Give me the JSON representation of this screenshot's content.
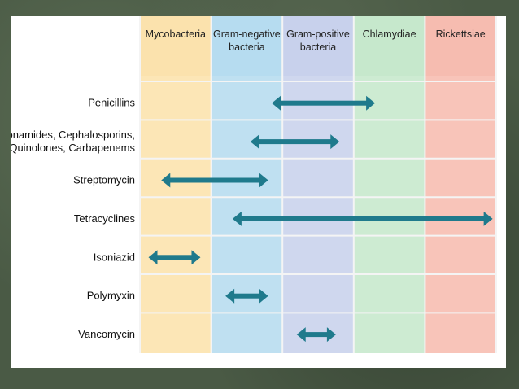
{
  "columns": [
    {
      "lines": [
        "Mycobacteria"
      ],
      "color": "#fce6b6",
      "head_color": "#fbe2ad"
    },
    {
      "lines": [
        "Gram-negative",
        "bacteria"
      ],
      "color": "#bfe0f1",
      "head_color": "#b6dcf0"
    },
    {
      "lines": [
        "Gram-positive",
        "bacteria"
      ],
      "color": "#cfd7ee",
      "head_color": "#c8d1ec"
    },
    {
      "lines": [
        "Chlamydiae"
      ],
      "color": "#cdebd2",
      "head_color": "#c6e8cc"
    },
    {
      "lines": [
        "Rickettsiae"
      ],
      "color": "#f8c4b9",
      "head_color": "#f6bcb0"
    }
  ],
  "rows": [
    {
      "lines": [
        "Penicillins"
      ],
      "from": 1.85,
      "to": 3.3
    },
    {
      "lines": [
        "Sulfonamides, Cephalosporins,",
        "Quinolones, Carbapenems"
      ],
      "from": 1.55,
      "to": 2.8
    },
    {
      "lines": [
        "Streptomycin"
      ],
      "from": 0.3,
      "to": 1.8
    },
    {
      "lines": [
        "Tetracyclines"
      ],
      "from": 1.3,
      "to": 4.95
    },
    {
      "lines": [
        "Isoniazid"
      ],
      "from": 0.12,
      "to": 0.85
    },
    {
      "lines": [
        "Polymyxin"
      ],
      "from": 1.2,
      "to": 1.8
    },
    {
      "lines": [
        "Vancomycin"
      ],
      "from": 2.2,
      "to": 2.75
    }
  ],
  "arrow_color": "#1f7a8c"
}
